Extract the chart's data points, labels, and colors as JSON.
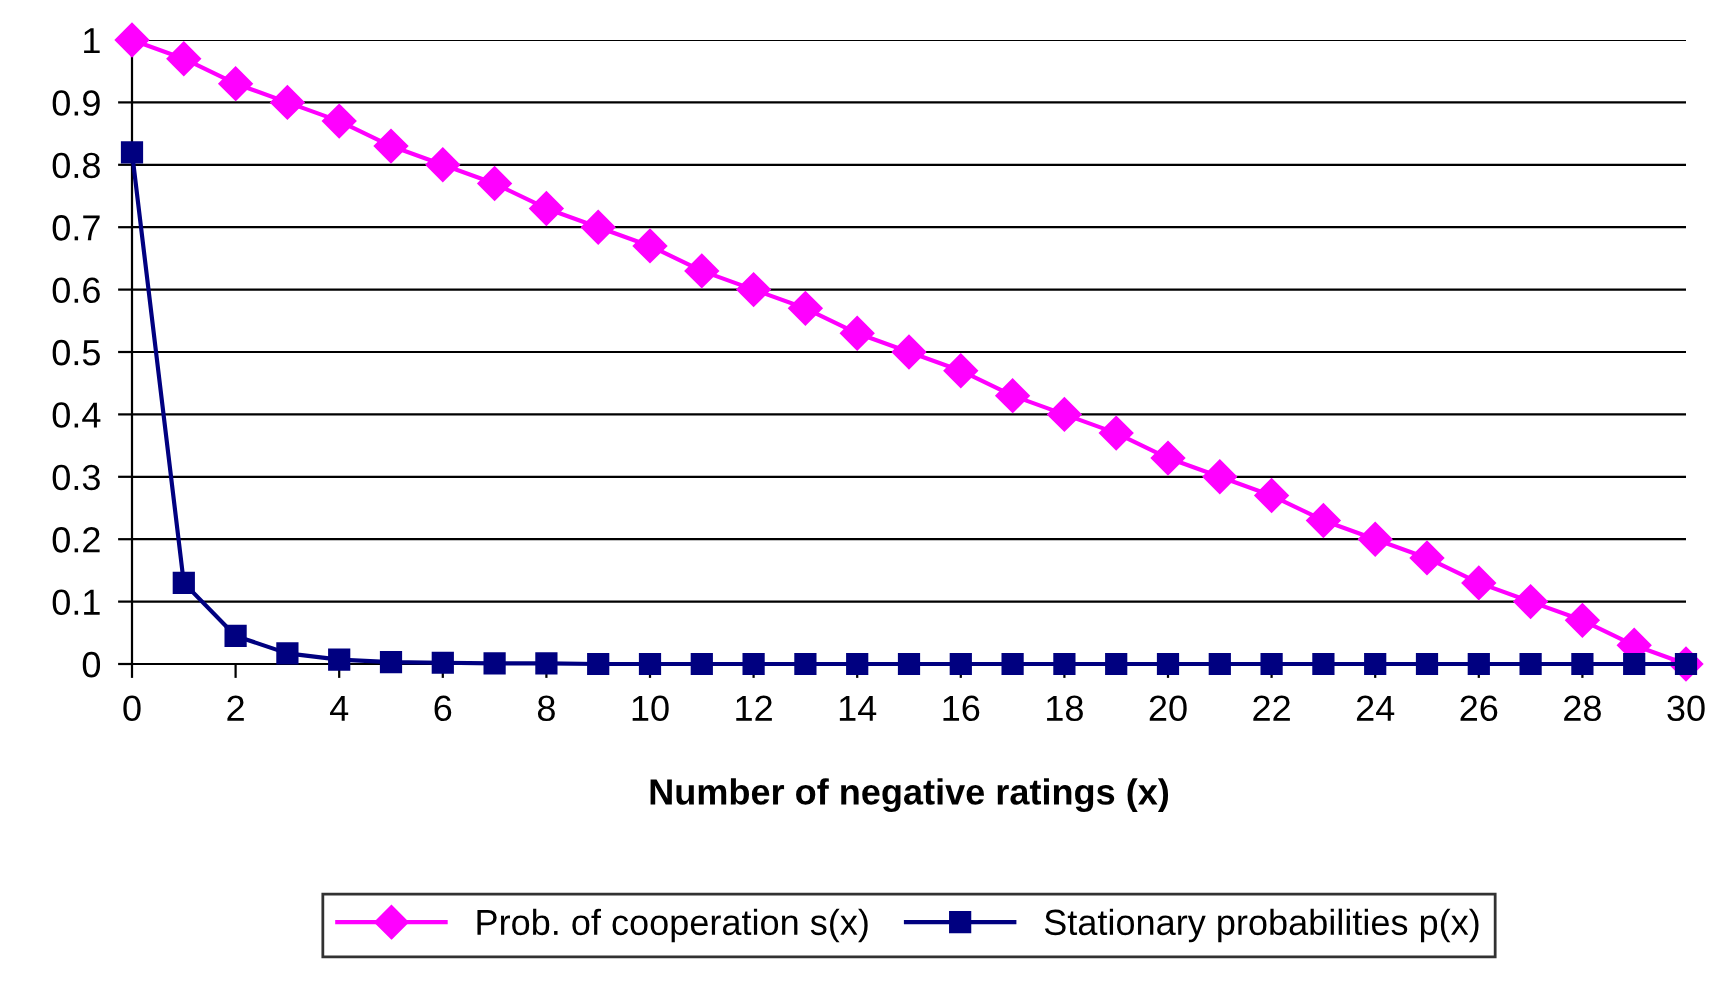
{
  "chart_data": {
    "type": "line",
    "xlabel": "Number of negative ratings (x)",
    "x": [
      0,
      1,
      2,
      3,
      4,
      5,
      6,
      7,
      8,
      9,
      10,
      11,
      12,
      13,
      14,
      15,
      16,
      17,
      18,
      19,
      20,
      21,
      22,
      23,
      24,
      25,
      26,
      27,
      28,
      29,
      30
    ],
    "series": [
      {
        "name": "Prob. of cooperation s(x)",
        "color": "#ff00ff",
        "marker": "diamond",
        "values": [
          1,
          0.97,
          0.93,
          0.9,
          0.87,
          0.83,
          0.8,
          0.77,
          0.73,
          0.7,
          0.67,
          0.63,
          0.6,
          0.57,
          0.53,
          0.5,
          0.47,
          0.43,
          0.4,
          0.37,
          0.33,
          0.3,
          0.27,
          0.23,
          0.2,
          0.17,
          0.13,
          0.1,
          0.07,
          0.03,
          0
        ]
      },
      {
        "name": "Stationary probabilities p(x)",
        "color": "#000080",
        "marker": "square",
        "values": [
          0.82,
          0.13,
          0.045,
          0.017,
          0.007,
          0.003,
          0.002,
          0.001,
          0.001,
          0,
          0,
          0,
          0,
          0,
          0,
          0,
          0,
          0,
          0,
          0,
          0,
          0,
          0,
          0,
          0,
          0,
          0,
          0,
          0,
          0,
          0
        ]
      }
    ],
    "xlim": [
      0,
      30
    ],
    "xticks": [
      0,
      2,
      4,
      6,
      8,
      10,
      12,
      14,
      16,
      18,
      20,
      22,
      24,
      26,
      28,
      30
    ],
    "ylim": [
      0,
      1
    ],
    "yticks": [
      0,
      0.1,
      0.2,
      0.3,
      0.4,
      0.5,
      0.6,
      0.7,
      0.8,
      0.9,
      1
    ],
    "grid": "y",
    "legend": "bottom",
    "line_style": "solid"
  }
}
